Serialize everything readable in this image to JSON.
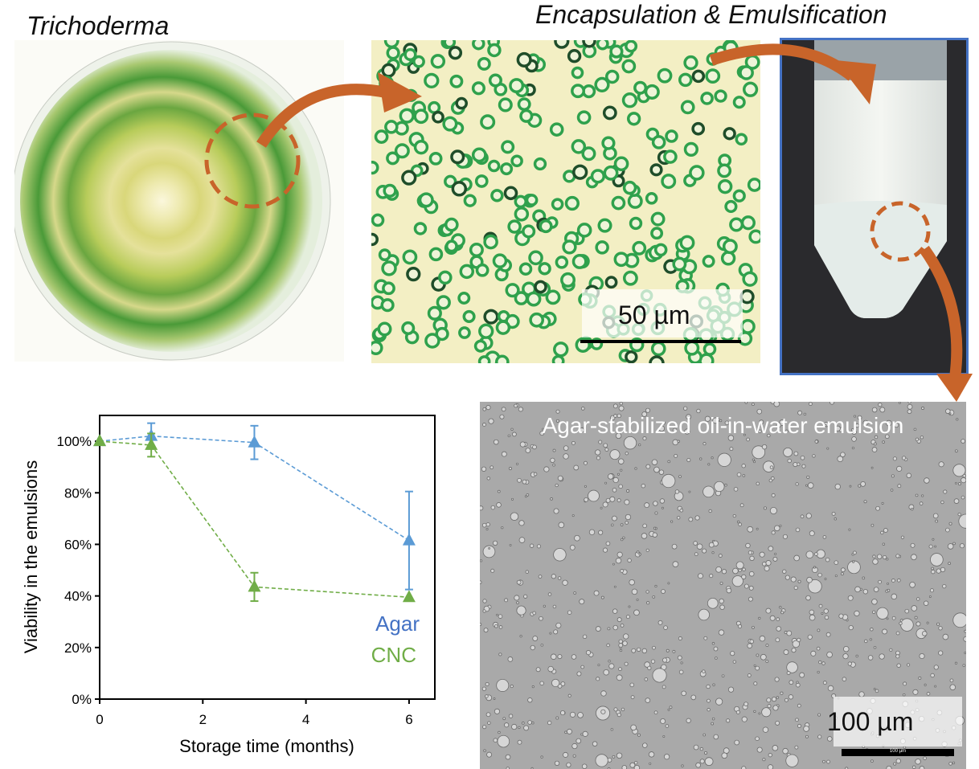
{
  "titles": {
    "organism": "Trichoderma",
    "process": "Encapsulation & Emulsification",
    "emulsion": "Agar-stabilized oil-in-water emulsion"
  },
  "scale_bars": {
    "capsules": "50 µm",
    "emulsion": "100 µm",
    "emulsion_small": "100 µm"
  },
  "colors": {
    "arrow": "#c8642a",
    "agar": "#5b9bd5",
    "cnc": "#70ad47",
    "frame": "#4472c4"
  },
  "chart_data": {
    "type": "line",
    "xlabel": "Storage time (months)",
    "ylabel": "Viability in the emulsions",
    "xlim": [
      0,
      6.5
    ],
    "ylim": [
      0,
      110
    ],
    "xticks": [
      "0",
      "2",
      "4",
      "6"
    ],
    "yticks": [
      "0%",
      "20%",
      "40%",
      "60%",
      "80%",
      "100%"
    ],
    "grid": false,
    "legend_placement": "bottom-right",
    "series": [
      {
        "name": "Agar",
        "x": [
          0,
          1,
          3,
          6
        ],
        "values": [
          100,
          102,
          99.5,
          61.5
        ],
        "error": [
          0,
          5,
          6.5,
          19
        ],
        "color": "#5b9bd5",
        "marker": "triangle",
        "line": "dashed"
      },
      {
        "name": "CNC",
        "x": [
          0,
          1,
          3,
          6
        ],
        "values": [
          100,
          98.5,
          43.5,
          39.5
        ],
        "error": [
          0,
          4.5,
          5.5,
          0
        ],
        "color": "#70ad47",
        "marker": "triangle",
        "line": "dashed"
      }
    ]
  }
}
